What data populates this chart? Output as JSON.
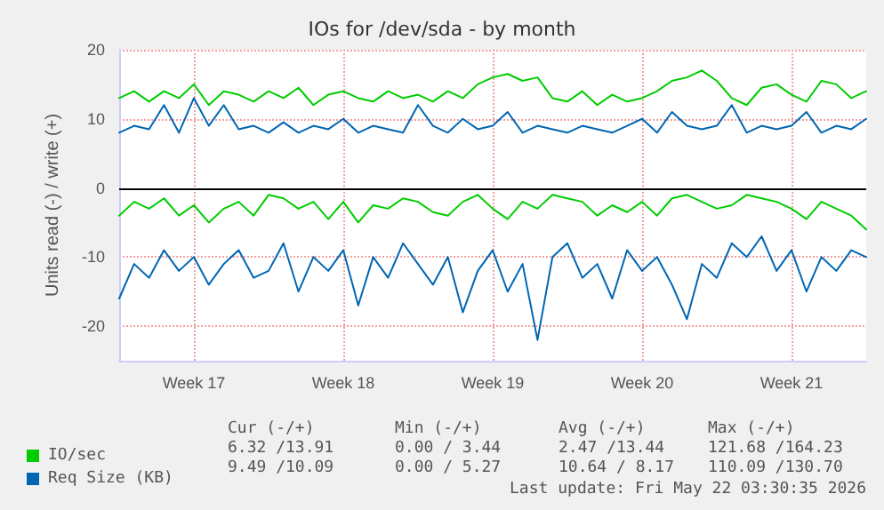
{
  "chart_data": {
    "type": "line",
    "title": "IOs for /dev/sda - by month",
    "ylabel": "Units read (-) / write (+)",
    "series": [
      {
        "name": "IO/sec",
        "color": "#00cc00",
        "values": [
          13,
          14,
          12.5,
          14,
          13,
          15,
          12,
          14,
          13.5,
          12.5,
          14,
          13,
          14.5,
          12,
          13.5,
          14,
          13,
          12.5,
          14,
          13,
          13.5,
          12.5,
          14,
          13,
          15,
          16,
          16.5,
          15.5,
          16,
          13,
          12.5,
          14,
          12,
          13.5,
          12.5,
          13,
          14,
          15.5,
          16,
          17,
          15.5,
          13,
          12,
          14.5,
          15,
          13.5,
          12.5,
          15.5,
          15,
          13,
          14
        ]
      },
      {
        "color": "#00cc00",
        "values": [
          -4,
          -2,
          -3,
          -1.5,
          -4,
          -2.5,
          -5,
          -3,
          -2,
          -4,
          -1,
          -1.5,
          -3,
          -2,
          -4.5,
          -2,
          -5,
          -2.5,
          -3,
          -1.5,
          -2,
          -3.5,
          -4,
          -2,
          -1,
          -3,
          -4.5,
          -2,
          -3,
          -1,
          -1.5,
          -2,
          -4,
          -2.5,
          -3.5,
          -2,
          -4,
          -1.5,
          -1,
          -2,
          -3,
          -2.5,
          -1,
          -1.5,
          -2,
          -3,
          -4.5,
          -2,
          -3,
          -4,
          -6
        ]
      },
      {
        "name": "Req Size (KB)",
        "color": "#0066b3",
        "values": [
          8,
          9,
          8.5,
          12,
          8,
          13,
          9,
          12,
          8.5,
          9,
          8,
          9.5,
          8,
          9,
          8.5,
          10,
          8,
          9,
          8.5,
          8,
          12,
          9,
          8,
          10,
          8.5,
          9,
          11,
          8,
          9,
          8.5,
          8,
          9,
          8.5,
          8,
          9,
          10,
          8,
          11,
          9,
          8.5,
          9,
          12,
          8,
          9,
          8.5,
          9,
          11,
          8,
          9,
          8.5,
          10
        ]
      },
      {
        "color": "#0066b3",
        "values": [
          -16,
          -11,
          -13,
          -9,
          -12,
          -10,
          -14,
          -11,
          -9,
          -13,
          -12,
          -8,
          -15,
          -10,
          -12,
          -9,
          -17,
          -10,
          -13,
          -8,
          -11,
          -14,
          -10,
          -18,
          -12,
          -9,
          -15,
          -11,
          -22,
          -10,
          -8,
          -13,
          -11,
          -16,
          -9,
          -12,
          -10,
          -14,
          -19,
          -11,
          -13,
          -8,
          -10,
          -7,
          -12,
          -9,
          -15,
          -10,
          -12,
          -9,
          -10
        ]
      }
    ],
    "categories": [
      null,
      null,
      null,
      null,
      null,
      "Week 17",
      null,
      null,
      null,
      null,
      null,
      null,
      null,
      null,
      null,
      "Week 18",
      null,
      null,
      null,
      null,
      null,
      null,
      null,
      null,
      null,
      "Week 19",
      null,
      null,
      null,
      null,
      null,
      null,
      null,
      null,
      null,
      "Week 20",
      null,
      null,
      null,
      null,
      null,
      null,
      null,
      null,
      null,
      "Week 21",
      null,
      null,
      null,
      null,
      null
    ],
    "ylim": [
      -25,
      20
    ],
    "yticks": [
      -20,
      -10,
      0,
      10,
      20
    ],
    "ref_lines": [
      {
        "axis": "y",
        "value": 0,
        "color": "#000000"
      }
    ],
    "grid": true,
    "legend": "bottom left",
    "marker": "none",
    "line_style": "solid",
    "annotations": [
      "Cur (-/+)",
      "Min (-/+)",
      "Avg (-/+)",
      "Max (-/+)",
      "6.32 /13.91",
      "0.00 / 3.44",
      "2.47 /13.44",
      "121.68 /164.23",
      "9.49 /10.09",
      "0.00 / 5.27",
      "10.64 / 8.17",
      "110.09 /130.70",
      "Last update: Fri May 22 03:30:35 2026"
    ]
  }
}
